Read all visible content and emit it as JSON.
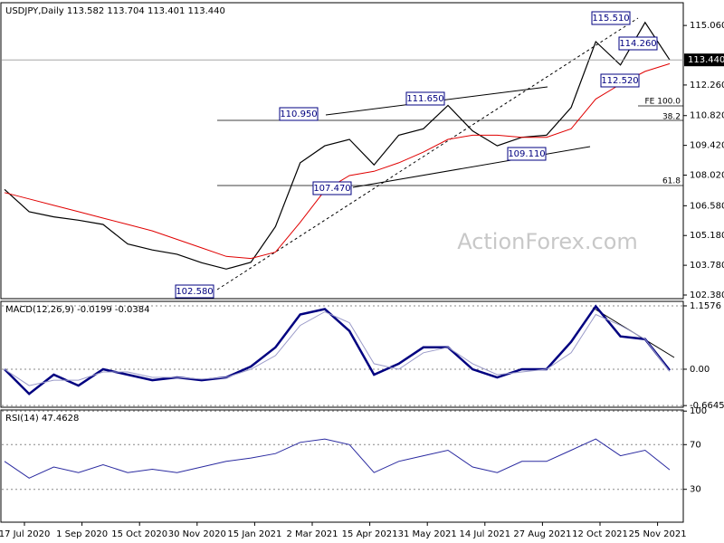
{
  "chart_data": [
    {
      "type": "line",
      "title": "USDJPY,Daily 113.582 113.704 113.401 113.440",
      "series": [
        {
          "color": "#000000",
          "values": [
            107.35,
            106.3,
            106.06,
            105.9,
            105.7,
            104.78,
            104.5,
            104.3,
            103.9,
            103.6,
            103.92,
            105.6,
            108.6,
            109.4,
            109.7,
            108.5,
            109.9,
            110.2,
            111.3,
            110.1,
            109.4,
            109.8,
            109.9,
            111.2,
            114.3,
            113.2,
            115.2,
            113.44
          ]
        },
        {
          "color": "#e00000",
          "values": [
            107.2,
            106.9,
            106.6,
            106.3,
            106.0,
            105.7,
            105.4,
            105.0,
            104.6,
            104.2,
            104.1,
            104.4,
            105.8,
            107.3,
            108.0,
            108.2,
            108.6,
            109.1,
            109.7,
            109.9,
            109.9,
            109.8,
            109.8,
            110.2,
            111.6,
            112.3,
            112.9,
            113.26
          ]
        }
      ],
      "ylim": [
        102.21,
        116.13
      ],
      "yticks": [
        {
          "value": 115.06,
          "label": "115.060"
        },
        {
          "value": 112.26,
          "label": "112.260"
        },
        {
          "value": 110.82,
          "label": "110.820"
        },
        {
          "value": 109.42,
          "label": "109.420"
        },
        {
          "value": 108.02,
          "label": "108.020"
        },
        {
          "value": 106.58,
          "label": "106.580"
        },
        {
          "value": 105.18,
          "label": "105.180"
        },
        {
          "value": 103.78,
          "label": "103.780"
        },
        {
          "value": 102.38,
          "label": "102.380"
        }
      ],
      "last_label": "113.440",
      "annotations": [
        "115.510",
        "114.260",
        "112.520",
        "111.650",
        "110.950",
        "109.110",
        "107.470",
        "102.580",
        "FE 100.0",
        "38.2",
        "61.8"
      ],
      "watermark": "ActionForex.com"
    },
    {
      "type": "line",
      "title": "MACD(12,26,9) -0.0199 -0.0384",
      "series": [
        {
          "color": "#000080",
          "values": [
            0,
            -0.45,
            -0.1,
            -0.3,
            0.0,
            -0.1,
            -0.2,
            -0.15,
            -0.2,
            -0.15,
            0.05,
            0.4,
            1.0,
            1.1,
            0.7,
            -0.1,
            0.1,
            0.4,
            0.4,
            0.0,
            -0.15,
            0.0,
            0.0,
            0.5,
            1.15,
            0.6,
            0.55,
            -0.02
          ]
        },
        {
          "color": "#9a9ac8",
          "values": [
            0,
            -0.3,
            -0.2,
            -0.2,
            -0.05,
            -0.05,
            -0.15,
            -0.15,
            -0.18,
            -0.15,
            0.0,
            0.25,
            0.8,
            1.05,
            0.85,
            0.1,
            0.0,
            0.3,
            0.4,
            0.1,
            -0.1,
            -0.05,
            0.0,
            0.3,
            1.0,
            0.8,
            0.55,
            -0.04
          ]
        }
      ],
      "ylim": [
        -0.695,
        1.24
      ],
      "yticks": [
        1.1576,
        {
          "value": 0,
          "label": "0.00"
        },
        -0.6645
      ],
      "grid": true
    },
    {
      "type": "line",
      "title": "RSI(14) 47.4628",
      "series": [
        {
          "color": "#2a2aa0",
          "values": [
            55,
            40,
            50,
            45,
            52,
            45,
            48,
            45,
            50,
            55,
            58,
            62,
            72,
            75,
            70,
            45,
            55,
            60,
            65,
            50,
            45,
            55,
            55,
            65,
            75,
            60,
            65,
            47.5
          ]
        }
      ],
      "ylim": [
        0.6,
        101
      ],
      "yticks": [
        30,
        70,
        100
      ],
      "grid": true,
      "x_tick_labels": [
        "17 Jul 2020",
        "1 Sep 2020",
        "15 Oct 2020",
        "30 Nov 2020",
        "15 Jan 2021",
        "2 Mar 2021",
        "15 Apr 2021",
        "31 May 2021",
        "14 Jul 2021",
        "27 Aug 2021",
        "12 Oct 2021",
        "25 Nov 2021"
      ]
    }
  ]
}
